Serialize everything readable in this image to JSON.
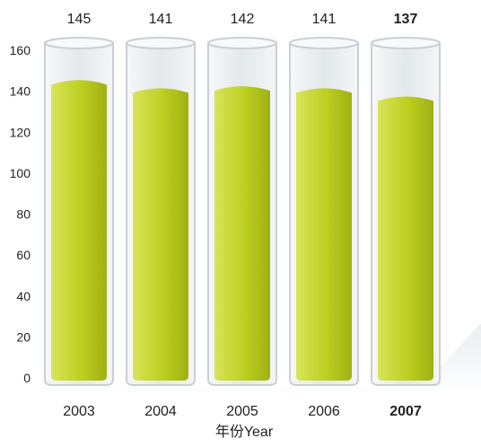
{
  "chart_data": {
    "type": "bar",
    "categories": [
      "2003",
      "2004",
      "2005",
      "2006",
      "2007"
    ],
    "values": [
      145,
      141,
      142,
      141,
      137
    ],
    "title": "",
    "xlabel": "年份Year",
    "ylabel": "",
    "ylim": [
      0,
      160
    ],
    "yticks": [
      0,
      20,
      40,
      60,
      80,
      100,
      120,
      140,
      160
    ],
    "highlight_index": 4,
    "grid": false,
    "style": "test-tube cylinders",
    "colors": {
      "liquid": "#bccf1e",
      "liquid_light": "#d8e45a",
      "liquid_dark": "#9fb014",
      "tube_fill": "#eef1f3",
      "tube_stroke": "#c9cfd4",
      "text": "#222222"
    }
  }
}
